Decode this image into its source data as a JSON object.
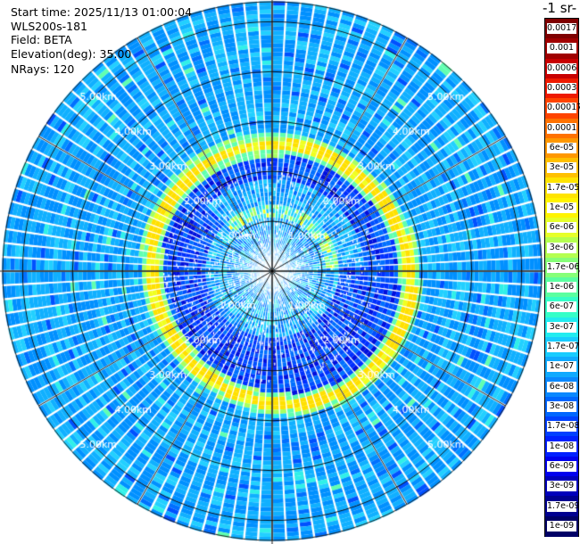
{
  "info": {
    "start_time": "Start time: 2025/11/13 01:00:04",
    "instrument": "WLS200s-181",
    "field": "Field: BETA",
    "elevation": "Elevation(deg): 35.00",
    "nrays": "NRays: 120"
  },
  "chart_data": {
    "type": "heatmap",
    "projection": "polar-ppi",
    "grid": true,
    "range_ring_labels": [
      "1.00km",
      "2.00km",
      "3.00km",
      "4.00km",
      "5.00km"
    ],
    "range_rings_km": [
      1,
      2,
      3,
      4,
      5
    ],
    "max_range_km": 5.4,
    "nrays": 120,
    "colorbar": {
      "unit_label": "-1 sr-",
      "labels": [
        "0.0017",
        "0.001",
        "0.0006",
        "0.0003",
        "0.00017",
        "0.0001",
        "6e-05",
        "3e-05",
        "1.7e-05",
        "1e-05",
        "6e-06",
        "3e-06",
        "1.7e-06",
        "1e-06",
        "6e-07",
        "3e-07",
        "1.7e-07",
        "1e-07",
        "6e-08",
        "3e-08",
        "1.7e-08",
        "1e-08",
        "6e-09",
        "3e-09",
        "1.7e-09",
        "1e-09"
      ],
      "colors": [
        "#7f0000",
        "#a00000",
        "#c80000",
        "#ee1a00",
        "#ff4400",
        "#ff7200",
        "#ff9800",
        "#ffc000",
        "#ffe400",
        "#fff400",
        "#e6ff2a",
        "#b4ff50",
        "#86ff78",
        "#5affa0",
        "#35ffc8",
        "#22ecf0",
        "#18ccff",
        "#10aaff",
        "#0a88ff",
        "#0066ff",
        "#0040ff",
        "#0020ff",
        "#0000ee",
        "#0000bb",
        "#000090",
        "#000066"
      ]
    }
  }
}
